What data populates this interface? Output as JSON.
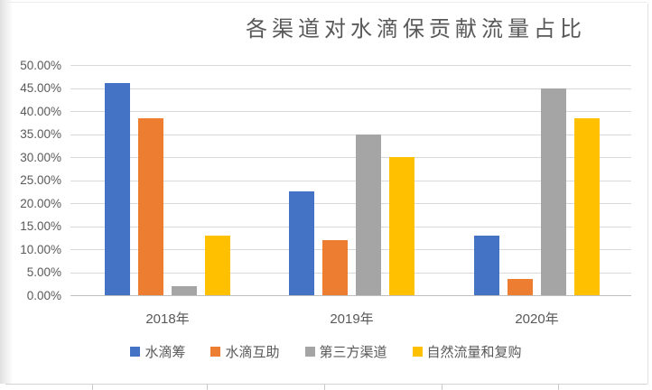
{
  "chart_data": {
    "type": "bar",
    "title": "各渠道对水滴保贡献流量占比",
    "categories": [
      "2018年",
      "2019年",
      "2020年"
    ],
    "series": [
      {
        "name": "水滴筹",
        "color": "#4472C4",
        "values": [
          46.0,
          22.5,
          13.0
        ]
      },
      {
        "name": "水滴互助",
        "color": "#ED7D31",
        "values": [
          38.5,
          12.0,
          3.5
        ]
      },
      {
        "name": "第三方渠道",
        "color": "#A5A5A5",
        "values": [
          2.0,
          35.0,
          45.0
        ]
      },
      {
        "name": "自然流量和复购",
        "color": "#FFC000",
        "values": [
          13.0,
          30.0,
          38.5
        ]
      }
    ],
    "y_axis": {
      "min": 0,
      "max": 50,
      "step": 5,
      "format": "percent",
      "tick_labels": [
        "0.00%",
        "5.00%",
        "10.00%",
        "15.00%",
        "20.00%",
        "25.00%",
        "30.00%",
        "35.00%",
        "40.00%",
        "45.00%",
        "50.00%"
      ]
    },
    "xlabel": "",
    "ylabel": "",
    "grid": true,
    "legend_position": "bottom"
  }
}
